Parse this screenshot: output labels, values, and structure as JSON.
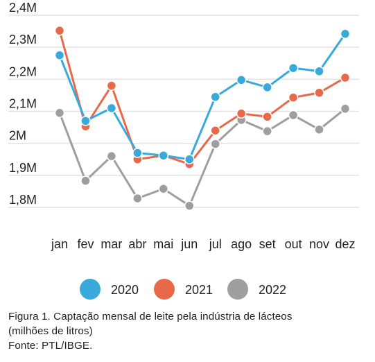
{
  "chart_data": {
    "type": "line",
    "categories": [
      "jan",
      "fev",
      "mar",
      "abr",
      "mai",
      "jun",
      "jul",
      "ago",
      "set",
      "out",
      "nov",
      "dez"
    ],
    "y_ticks": [
      "1,8M",
      "1,9M",
      "2M",
      "2,1M",
      "2,2M",
      "2,3M",
      "2,4M"
    ],
    "y_tick_values": [
      1.8,
      1.9,
      2.0,
      2.1,
      2.2,
      2.3,
      2.4
    ],
    "ylim": [
      1.8,
      2.4
    ],
    "grid": true,
    "legend_position": "bottom",
    "series": [
      {
        "name": "2020",
        "color": "#39a9db",
        "values": [
          2.275,
          2.07,
          2.11,
          1.97,
          1.962,
          1.95,
          2.145,
          2.198,
          2.175,
          2.235,
          2.225,
          2.342
        ]
      },
      {
        "name": "2021",
        "color": "#e8684a",
        "values": [
          2.352,
          2.053,
          2.18,
          1.95,
          1.962,
          1.935,
          2.04,
          2.093,
          2.083,
          2.143,
          2.158,
          2.205
        ]
      },
      {
        "name": "2022",
        "color": "#9e9e9e",
        "values": [
          2.095,
          1.883,
          1.96,
          1.828,
          1.858,
          1.805,
          1.998,
          2.073,
          2.038,
          2.088,
          2.043,
          2.108
        ]
      }
    ]
  },
  "caption": {
    "line1": "Figura 1. Captação mensal de leite pela indústria de lácteos",
    "line2": "(milhões de litros)",
    "line3": "Fonte: PTL/IBGE."
  }
}
